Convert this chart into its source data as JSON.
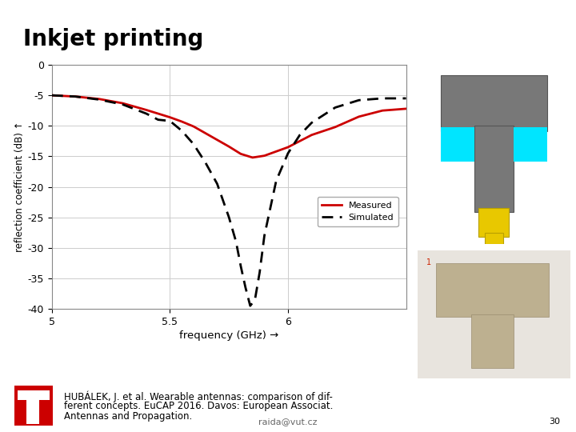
{
  "title": "Inkjet printing",
  "title_color": "#000000",
  "title_fontsize": 20,
  "bg_color": "#ffffff",
  "plot_bg_color": "#ffffff",
  "ylabel": "reflection coefficient (dB) ↑",
  "xlabel": "frequency (GHz) →",
  "xlim": [
    5.0,
    6.5
  ],
  "ylim": [
    -40,
    0
  ],
  "yticks": [
    0,
    -5,
    -10,
    -15,
    -20,
    -25,
    -30,
    -35,
    -40
  ],
  "xticks": [
    5.0,
    5.5,
    6.0
  ],
  "xtick_labels": [
    "5",
    "5.5",
    "6"
  ],
  "ytick_labels": [
    "0",
    "-5",
    "-10",
    "-15",
    "-20",
    "-25",
    "-30",
    "-35",
    "-40"
  ],
  "grid_color": "#cccccc",
  "measured_color": "#cc0000",
  "simulated_color": "#000000",
  "measured_lw": 2.0,
  "simulated_lw": 2.0,
  "legend_measured": "Measured",
  "legend_simulated": "Simulated",
  "sep_line_color": "#8b0000",
  "citation_line1": "HUBÁLEK, J. et al. Wearable antennas: comparison of dif-",
  "citation_line2": "ferent concepts. EuCAP 2016. Davos: European Associat.",
  "citation_line3": "Antennas and Propagation.",
  "footer_email": "raida@vut.cz",
  "footer_page": "30",
  "logo_color": "#cc0000",
  "cyan_color": "#00e5ff",
  "antenna_gray": "#787878",
  "antenna_dark": "#555555",
  "yellow_connector": "#e8c800",
  "measured_x": [
    5.0,
    5.1,
    5.2,
    5.3,
    5.4,
    5.5,
    5.55,
    5.6,
    5.65,
    5.7,
    5.75,
    5.8,
    5.85,
    5.9,
    5.95,
    6.0,
    6.05,
    6.1,
    6.2,
    6.3,
    6.4,
    6.5
  ],
  "measured_y": [
    -5.0,
    -5.2,
    -5.6,
    -6.3,
    -7.4,
    -8.6,
    -9.3,
    -10.1,
    -11.2,
    -12.3,
    -13.4,
    -14.6,
    -15.2,
    -14.9,
    -14.2,
    -13.5,
    -12.5,
    -11.5,
    -10.2,
    -8.5,
    -7.5,
    -7.2
  ],
  "simulated_x": [
    5.0,
    5.1,
    5.2,
    5.3,
    5.4,
    5.45,
    5.5,
    5.55,
    5.6,
    5.65,
    5.7,
    5.75,
    5.78,
    5.8,
    5.82,
    5.84,
    5.86,
    5.88,
    5.9,
    5.95,
    6.0,
    6.05,
    6.1,
    6.2,
    6.3,
    6.4,
    6.5
  ],
  "simulated_y": [
    -5.0,
    -5.2,
    -5.7,
    -6.5,
    -8.0,
    -9.0,
    -9.2,
    -10.8,
    -13.0,
    -16.0,
    -19.5,
    -25.0,
    -29.0,
    -33.0,
    -36.5,
    -39.5,
    -38.5,
    -34.0,
    -28.0,
    -19.0,
    -14.5,
    -11.5,
    -9.5,
    -7.0,
    -5.8,
    -5.5,
    -5.5
  ]
}
